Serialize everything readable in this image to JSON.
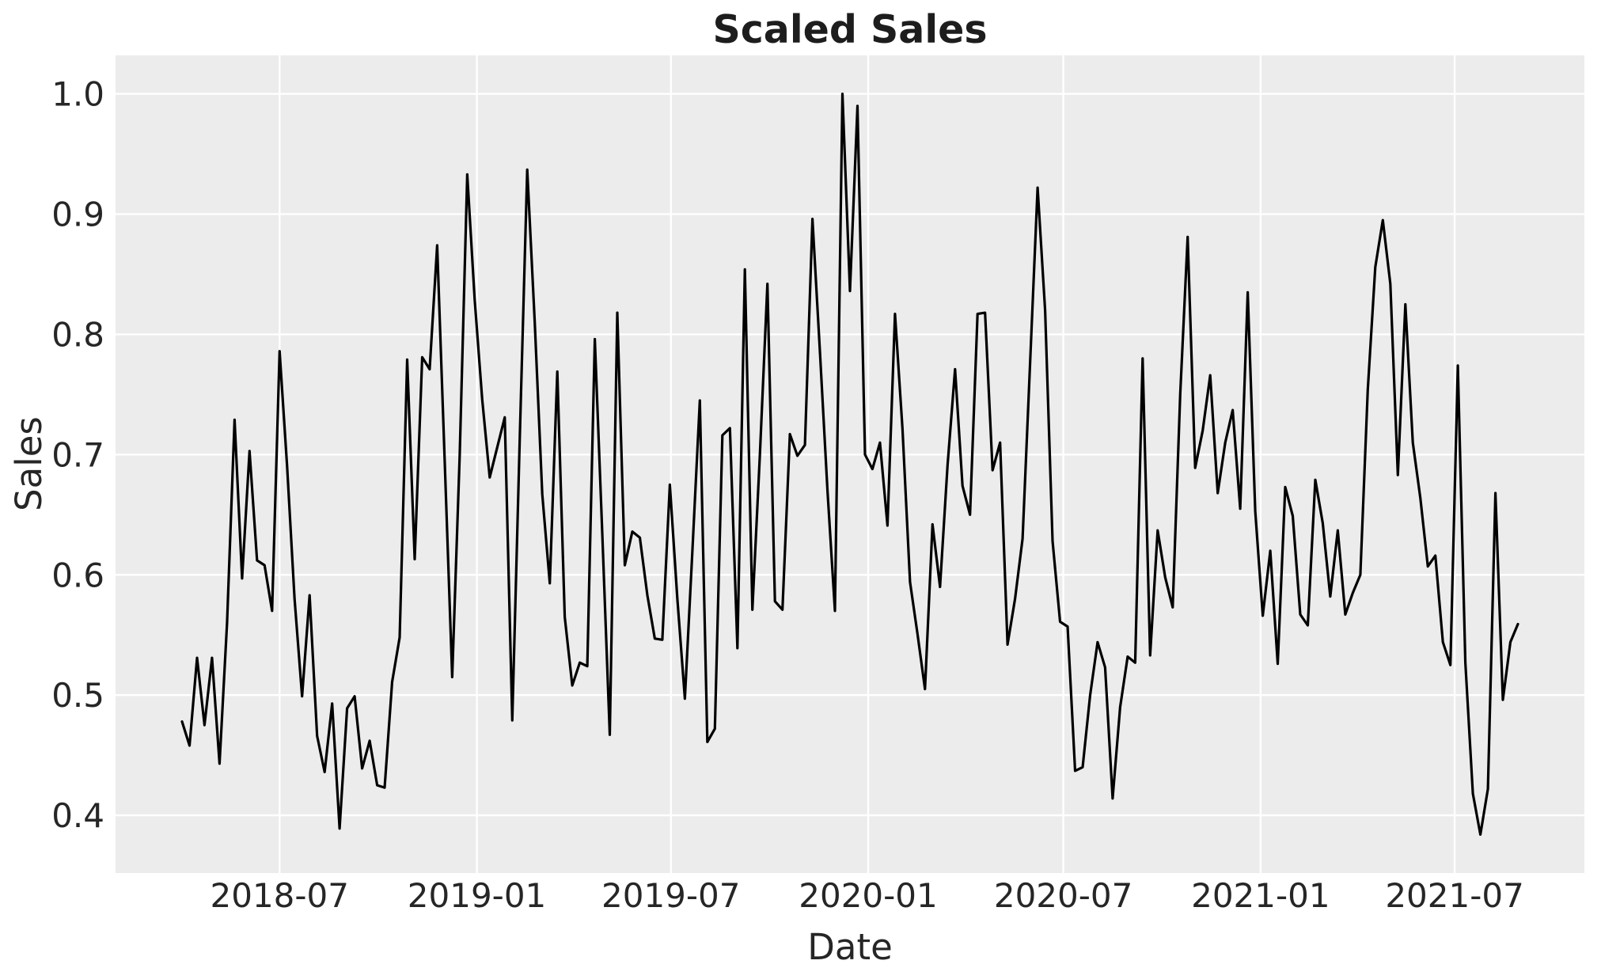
{
  "chart_data": {
    "type": "line",
    "title": "Scaled Sales",
    "xlabel": "Date",
    "ylabel": "Sales",
    "series": [
      {
        "name": "Scaled Sales",
        "x_start": "2018-04-01",
        "x_step_days": 7,
        "values": [
          0.478,
          0.458,
          0.531,
          0.475,
          0.531,
          0.443,
          0.56,
          0.729,
          0.597,
          0.703,
          0.612,
          0.608,
          0.57,
          0.786,
          0.69,
          0.58,
          0.499,
          0.583,
          0.466,
          0.436,
          0.493,
          0.389,
          0.489,
          0.499,
          0.439,
          0.462,
          0.425,
          0.423,
          0.511,
          0.548,
          0.779,
          0.613,
          0.781,
          0.771,
          0.874,
          0.695,
          0.515,
          0.7,
          0.933,
          0.829,
          0.746,
          0.681,
          0.706,
          0.731,
          0.479,
          0.712,
          0.937,
          0.81,
          0.667,
          0.593,
          0.769,
          0.565,
          0.508,
          0.527,
          0.524,
          0.796,
          0.633,
          0.467,
          0.818,
          0.608,
          0.636,
          0.631,
          0.583,
          0.547,
          0.546,
          0.675,
          0.58,
          0.497,
          0.62,
          0.745,
          0.461,
          0.472,
          0.716,
          0.722,
          0.539,
          0.854,
          0.571,
          0.7,
          0.842,
          0.578,
          0.571,
          0.717,
          0.699,
          0.708,
          0.896,
          0.785,
          0.67,
          0.57,
          1.0,
          0.836,
          0.99,
          0.7,
          0.688,
          0.71,
          0.641,
          0.817,
          0.721,
          0.594,
          0.551,
          0.505,
          0.642,
          0.59,
          0.691,
          0.771,
          0.674,
          0.65,
          0.817,
          0.818,
          0.687,
          0.71,
          0.542,
          0.58,
          0.63,
          0.776,
          0.922,
          0.82,
          0.628,
          0.561,
          0.557,
          0.437,
          0.44,
          0.5,
          0.544,
          0.523,
          0.414,
          0.49,
          0.532,
          0.527,
          0.78,
          0.533,
          0.637,
          0.598,
          0.573,
          0.75,
          0.881,
          0.689,
          0.72,
          0.766,
          0.668,
          0.71,
          0.737,
          0.655,
          0.835,
          0.653,
          0.566,
          0.62,
          0.526,
          0.673,
          0.649,
          0.567,
          0.558,
          0.679,
          0.643,
          0.582,
          0.637,
          0.567,
          0.585,
          0.6,
          0.754,
          0.856,
          0.895,
          0.842,
          0.683,
          0.825,
          0.71,
          0.664,
          0.607,
          0.616,
          0.544,
          0.525,
          0.774,
          0.527,
          0.418,
          0.384,
          0.422,
          0.668,
          0.496,
          0.544,
          0.559
        ]
      }
    ],
    "x_tick_labels": [
      "2018-07",
      "2019-01",
      "2019-07",
      "2020-01",
      "2020-07",
      "2021-01",
      "2021-07"
    ],
    "x_tick_dates": [
      "2018-07-01",
      "2019-01-01",
      "2019-07-01",
      "2020-01-01",
      "2020-07-01",
      "2021-01-01",
      "2021-07-01"
    ],
    "y_tick_labels": [
      "0.4",
      "0.5",
      "0.6",
      "0.7",
      "0.8",
      "0.9",
      "1.0"
    ],
    "y_tick_values": [
      0.4,
      0.5,
      0.6,
      0.7,
      0.8,
      0.9,
      1.0
    ],
    "xlim": [
      "2018-01-29",
      "2021-10-30"
    ],
    "ylim": [
      0.352,
      1.032
    ],
    "grid": true,
    "legend_position": "none",
    "colors": {
      "line": "#000000",
      "plot_background": "#ececec",
      "figure_background": "#ffffff",
      "gridline": "#ffffff",
      "text": "#262626",
      "title_text": "#1d1d1d"
    }
  }
}
